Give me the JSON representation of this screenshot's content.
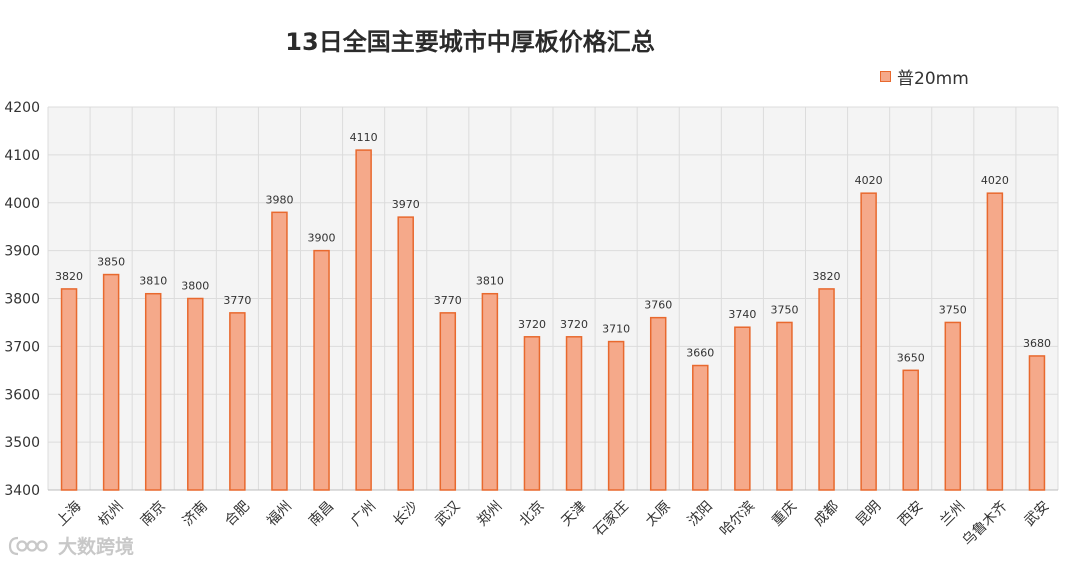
{
  "chart_data": {
    "type": "bar",
    "title": "13日全国主要城市中厚板价格汇总",
    "xlabel": "",
    "ylabel": "",
    "ylim": [
      3400,
      4200
    ],
    "yticks": [
      3400,
      3500,
      3600,
      3700,
      3800,
      3900,
      4000,
      4100,
      4200
    ],
    "grid": true,
    "legend_position": "top-right",
    "categories": [
      "上海",
      "杭州",
      "南京",
      "济南",
      "合肥",
      "福州",
      "南昌",
      "广州",
      "长沙",
      "武汉",
      "郑州",
      "北京",
      "天津",
      "石家庄",
      "太原",
      "沈阳",
      "哈尔滨",
      "重庆",
      "成都",
      "昆明",
      "西安",
      "兰州",
      "乌鲁木齐",
      "武安"
    ],
    "series": [
      {
        "name": "普20mm",
        "values": [
          3820,
          3850,
          3810,
          3800,
          3770,
          3980,
          3900,
          4110,
          3970,
          3770,
          3810,
          3720,
          3720,
          3710,
          3760,
          3660,
          3740,
          3750,
          3820,
          4020,
          3650,
          3750,
          4020,
          3680
        ]
      }
    ],
    "colors": {
      "fill": "#f5a98a",
      "stroke": "#e8692e",
      "plot_bg": "#f4f4f4",
      "grid": "#dcdcdc"
    }
  },
  "watermark": {
    "text": "大数跨境"
  }
}
